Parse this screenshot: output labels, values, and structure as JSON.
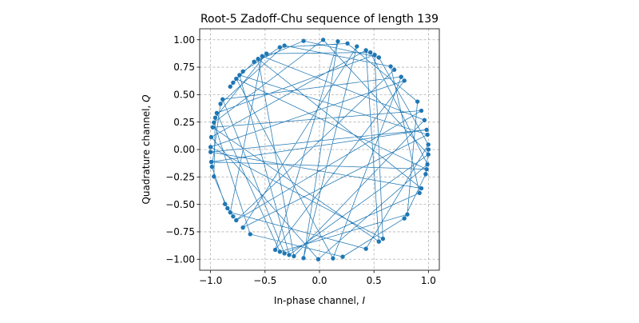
{
  "chart_data": {
    "type": "line",
    "title": "Root-5 Zadoff-Chu sequence of length 139",
    "xlabel": "In-phase channel, ",
    "xlabel_var": "I",
    "ylabel": "Quadrature channel, ",
    "ylabel_var": "Q",
    "xlim": [
      -1.1,
      1.1
    ],
    "ylim": [
      -1.1,
      1.1
    ],
    "xticks": [
      -1.0,
      -0.5,
      0.0,
      0.5,
      1.0
    ],
    "xtick_labels": [
      "−1.0",
      "−0.5",
      "0.0",
      "0.5",
      "1.0"
    ],
    "yticks": [
      -1.0,
      -0.75,
      -0.5,
      -0.25,
      0.0,
      0.25,
      0.5,
      0.75,
      1.0
    ],
    "ytick_labels": [
      "−1.00",
      "−0.75",
      "−0.50",
      "−0.25",
      "0.00",
      "0.25",
      "0.50",
      "0.75",
      "1.00"
    ],
    "grid": true,
    "aspect": "equal",
    "series": [
      {
        "root": 5,
        "length": 139,
        "color": "#1f77b4",
        "marker": "circle",
        "linewidth": 0.75,
        "markersize": 4
      }
    ]
  }
}
